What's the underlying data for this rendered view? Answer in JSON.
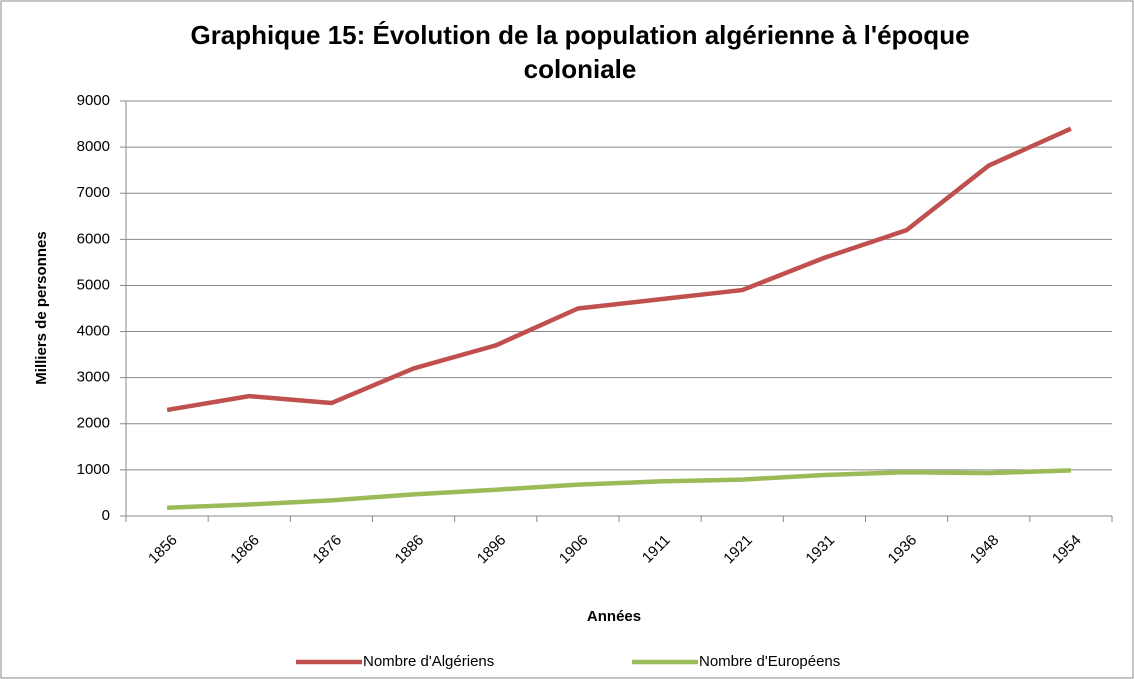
{
  "chart_data": {
    "type": "line",
    "title": "Graphique 15: Évolution de la population algérienne à l'époque coloniale",
    "x_label": "Années",
    "y_label": "Milliers de personnes",
    "categories": [
      "1856",
      "1866",
      "1876",
      "1886",
      "1896",
      "1906",
      "1911",
      "1921",
      "1931",
      "1936",
      "1948",
      "1954"
    ],
    "series": [
      {
        "name": "Nombre d'Algériens",
        "color": "#c0504d",
        "values": [
          2300,
          2600,
          2450,
          3200,
          3700,
          4500,
          4700,
          4900,
          5600,
          6200,
          7600,
          8400
        ]
      },
      {
        "name": "Nombre d'Européens",
        "color": "#9bbb59",
        "values": [
          180,
          250,
          340,
          470,
          570,
          680,
          750,
          790,
          890,
          950,
          930,
          990
        ]
      }
    ],
    "ylim": [
      0,
      9000
    ],
    "yticks": [
      0,
      1000,
      2000,
      3000,
      4000,
      5000,
      6000,
      7000,
      8000,
      9000
    ],
    "grid": true,
    "legend": "bottom"
  }
}
